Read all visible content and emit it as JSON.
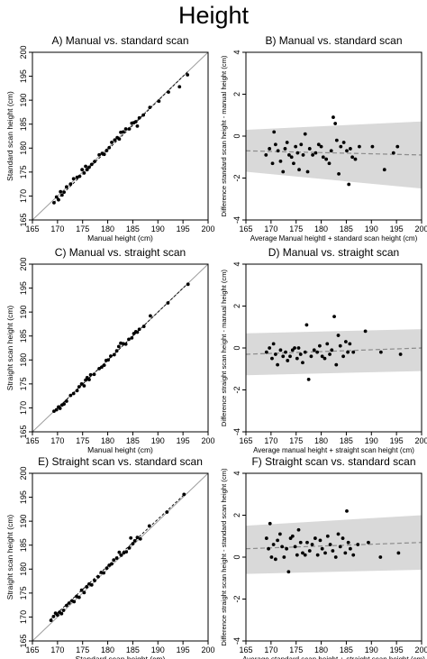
{
  "title": "Height",
  "chart_data": [
    {
      "id": "A",
      "type": "scatter",
      "title": "A) Manual vs. standard scan",
      "xlabel": "Manual height (cm)",
      "ylabel": "Standard scan height (cm)",
      "xlim": [
        165,
        200
      ],
      "ylim": [
        165,
        200
      ],
      "xticks": [
        "165",
        "170",
        "175",
        "180",
        "185",
        "190",
        "195",
        "200"
      ],
      "yticks": [
        "165",
        "170",
        "175",
        "180",
        "185",
        "190",
        "195",
        "200"
      ],
      "identity_line": true,
      "regression_line": {
        "style": "dashed",
        "from": [
          169.2,
          168.6
        ],
        "to": [
          196,
          196
        ]
      },
      "points": [
        [
          169.3,
          168.6
        ],
        [
          169.8,
          169.8
        ],
        [
          170.2,
          169.2
        ],
        [
          170.6,
          170.9
        ],
        [
          170.9,
          170.2
        ],
        [
          171.3,
          170.8
        ],
        [
          171.8,
          171.9
        ],
        [
          172.6,
          172.5
        ],
        [
          173.2,
          173.6
        ],
        [
          173.9,
          173.9
        ],
        [
          174.4,
          174.1
        ],
        [
          174.9,
          175.5
        ],
        [
          175.3,
          174.8
        ],
        [
          175.6,
          176.2
        ],
        [
          175.9,
          175.5
        ],
        [
          176.3,
          176.0
        ],
        [
          176.8,
          176.6
        ],
        [
          177.4,
          177.2
        ],
        [
          178.3,
          178.6
        ],
        [
          178.9,
          178.9
        ],
        [
          179.3,
          178.7
        ],
        [
          179.8,
          179.5
        ],
        [
          180.3,
          180.1
        ],
        [
          180.8,
          181.2
        ],
        [
          181.4,
          181.7
        ],
        [
          181.9,
          182.2
        ],
        [
          182.3,
          181.9
        ],
        [
          182.6,
          183.3
        ],
        [
          183.1,
          183.4
        ],
        [
          183.6,
          184.0
        ],
        [
          184.3,
          184.0
        ],
        [
          184.8,
          185.2
        ],
        [
          185.2,
          185.3
        ],
        [
          185.6,
          185.5
        ],
        [
          185.9,
          184.6
        ],
        [
          186.3,
          186.3
        ],
        [
          187.1,
          186.9
        ],
        [
          188.4,
          188.5
        ],
        [
          190.2,
          189.8
        ],
        [
          192.1,
          191.7
        ],
        [
          194.3,
          192.8
        ],
        [
          195.9,
          195.3
        ]
      ]
    },
    {
      "id": "B",
      "type": "scatter",
      "title": "B) Manual vs. standard scan",
      "xlabel": "Average Manual heightl + standard scan height (cm)",
      "ylabel": "Difference standard scan height - manual height (cm)",
      "xlim": [
        165,
        200
      ],
      "ylim": [
        -4,
        4
      ],
      "xticks": [
        "165",
        "170",
        "175",
        "180",
        "185",
        "190",
        "195",
        "200"
      ],
      "yticks": [
        "-4",
        "-2",
        "0",
        "2",
        "4"
      ],
      "mean_line": {
        "style": "dashed",
        "from": [
          165,
          -0.7
        ],
        "to": [
          200,
          -0.9
        ]
      },
      "limits_band": {
        "upper": [
          [
            165,
            0.3
          ],
          [
            200,
            0.7
          ]
        ],
        "lower": [
          [
            165,
            -1.7
          ],
          [
            200,
            -2.5
          ]
        ]
      },
      "points": [
        [
          169.0,
          -0.9
        ],
        [
          169.7,
          -0.6
        ],
        [
          170.3,
          -1.3
        ],
        [
          170.6,
          0.2
        ],
        [
          170.9,
          -0.4
        ],
        [
          171.4,
          -0.7
        ],
        [
          171.9,
          -1.2
        ],
        [
          172.4,
          -1.7
        ],
        [
          172.8,
          -0.6
        ],
        [
          173.2,
          -0.3
        ],
        [
          173.6,
          -0.9
        ],
        [
          174.1,
          -1.0
        ],
        [
          174.5,
          -1.3
        ],
        [
          174.9,
          -0.5
        ],
        [
          175.3,
          -0.8
        ],
        [
          175.6,
          -1.6
        ],
        [
          176.0,
          -0.4
        ],
        [
          176.4,
          -0.9
        ],
        [
          176.8,
          0.1
        ],
        [
          177.3,
          -1.7
        ],
        [
          177.7,
          -0.6
        ],
        [
          178.3,
          -0.9
        ],
        [
          178.9,
          -0.8
        ],
        [
          179.5,
          -0.4
        ],
        [
          180.0,
          -0.5
        ],
        [
          180.4,
          -1.0
        ],
        [
          181.0,
          -1.1
        ],
        [
          181.6,
          -1.3
        ],
        [
          182.0,
          -0.7
        ],
        [
          182.4,
          0.9
        ],
        [
          182.8,
          0.6
        ],
        [
          183.1,
          -0.2
        ],
        [
          183.5,
          -1.8
        ],
        [
          183.9,
          -0.5
        ],
        [
          184.5,
          -0.3
        ],
        [
          185.1,
          -0.7
        ],
        [
          185.5,
          -2.3
        ],
        [
          185.8,
          -0.6
        ],
        [
          186.2,
          -1.0
        ],
        [
          186.8,
          -1.1
        ],
        [
          187.6,
          -0.5
        ],
        [
          190.2,
          -0.5
        ],
        [
          192.6,
          -1.6
        ],
        [
          194.4,
          -0.8
        ],
        [
          195.2,
          -0.5
        ]
      ]
    },
    {
      "id": "C",
      "type": "scatter",
      "title": "C) Manual vs. straight scan",
      "xlabel": "Manual height (cm)",
      "ylabel": "Straight scan height (cm)",
      "xlim": [
        165,
        200
      ],
      "ylim": [
        165,
        200
      ],
      "xticks": [
        "165",
        "170",
        "175",
        "180",
        "185",
        "190",
        "195",
        "200"
      ],
      "yticks": [
        "165",
        "170",
        "175",
        "180",
        "185",
        "190",
        "195",
        "200"
      ],
      "identity_line": true,
      "regression_line": {
        "style": "dashed",
        "from": [
          169.2,
          169.1
        ],
        "to": [
          196,
          196
        ]
      },
      "points": [
        [
          169.3,
          169.3
        ],
        [
          169.8,
          169.6
        ],
        [
          170.2,
          170.2
        ],
        [
          170.5,
          169.9
        ],
        [
          170.9,
          170.6
        ],
        [
          171.3,
          170.8
        ],
        [
          171.8,
          171.4
        ],
        [
          172.6,
          172.6
        ],
        [
          173.2,
          173.0
        ],
        [
          173.9,
          173.6
        ],
        [
          174.3,
          174.4
        ],
        [
          174.8,
          175.0
        ],
        [
          175.3,
          174.6
        ],
        [
          175.6,
          175.8
        ],
        [
          175.9,
          176.3
        ],
        [
          176.3,
          175.9
        ],
        [
          176.6,
          176.9
        ],
        [
          177.3,
          177.0
        ],
        [
          178.3,
          178.2
        ],
        [
          178.8,
          178.5
        ],
        [
          179.3,
          178.9
        ],
        [
          179.7,
          179.9
        ],
        [
          180.1,
          180.0
        ],
        [
          180.6,
          180.8
        ],
        [
          181.3,
          181.1
        ],
        [
          181.8,
          181.9
        ],
        [
          182.2,
          182.8
        ],
        [
          182.6,
          183.5
        ],
        [
          183.1,
          183.4
        ],
        [
          183.6,
          183.3
        ],
        [
          184.2,
          184.3
        ],
        [
          184.8,
          184.6
        ],
        [
          185.2,
          185.5
        ],
        [
          185.6,
          185.9
        ],
        [
          185.9,
          185.8
        ],
        [
          186.3,
          186.4
        ],
        [
          187.2,
          187.0
        ],
        [
          188.5,
          189.2
        ],
        [
          192.0,
          191.9
        ],
        [
          196.0,
          195.8
        ]
      ]
    },
    {
      "id": "D",
      "type": "scatter",
      "title": "D) Manual vs. straight scan",
      "xlabel": "Average manual height + straight scan height (cm)",
      "ylabel": "Difference straight scan height - manual height (cm)",
      "xlim": [
        165,
        200
      ],
      "ylim": [
        -4,
        4
      ],
      "xticks": [
        "165",
        "170",
        "175",
        "180",
        "185",
        "190",
        "195",
        "200"
      ],
      "yticks": [
        "-4",
        "-2",
        "0",
        "2",
        "4"
      ],
      "mean_line": {
        "style": "dashed",
        "from": [
          165,
          -0.3
        ],
        "to": [
          200,
          0.0
        ]
      },
      "limits_band": {
        "upper": [
          [
            165,
            0.7
          ],
          [
            200,
            0.9
          ]
        ],
        "lower": [
          [
            165,
            -1.3
          ],
          [
            200,
            -1.1
          ]
        ]
      },
      "points": [
        [
          169.1,
          -0.2
        ],
        [
          169.7,
          0.0
        ],
        [
          170.2,
          -0.5
        ],
        [
          170.5,
          0.2
        ],
        [
          170.9,
          -0.3
        ],
        [
          171.3,
          -0.8
        ],
        [
          171.9,
          -0.1
        ],
        [
          172.4,
          -0.4
        ],
        [
          172.9,
          -0.2
        ],
        [
          173.3,
          -0.6
        ],
        [
          173.8,
          -0.4
        ],
        [
          174.3,
          -0.1
        ],
        [
          174.7,
          0.0
        ],
        [
          175.2,
          -0.5
        ],
        [
          175.5,
          0.0
        ],
        [
          175.9,
          -0.3
        ],
        [
          176.3,
          -0.7
        ],
        [
          176.8,
          -0.2
        ],
        [
          177.1,
          1.1
        ],
        [
          177.5,
          -1.5
        ],
        [
          178.0,
          -0.4
        ],
        [
          178.6,
          -0.1
        ],
        [
          179.2,
          -0.2
        ],
        [
          179.7,
          0.1
        ],
        [
          180.2,
          -0.4
        ],
        [
          180.7,
          -0.5
        ],
        [
          181.2,
          0.2
        ],
        [
          181.7,
          -0.3
        ],
        [
          182.1,
          -0.1
        ],
        [
          182.6,
          1.5
        ],
        [
          183.0,
          -0.8
        ],
        [
          183.4,
          0.6
        ],
        [
          183.8,
          0.1
        ],
        [
          184.4,
          -0.4
        ],
        [
          184.9,
          0.3
        ],
        [
          185.3,
          -0.2
        ],
        [
          185.7,
          0.2
        ],
        [
          186.4,
          -0.2
        ],
        [
          188.8,
          0.8
        ],
        [
          191.9,
          -0.2
        ],
        [
          195.8,
          -0.3
        ]
      ]
    },
    {
      "id": "E",
      "type": "scatter",
      "title": "E) Straight scan vs. standard scan",
      "xlabel": "Standard scan height (cm)",
      "ylabel": "Straight scan height (cm)",
      "xlim": [
        165,
        200
      ],
      "ylim": [
        165,
        200
      ],
      "xticks": [
        "165",
        "170",
        "175",
        "180",
        "185",
        "190",
        "195",
        "200"
      ],
      "yticks": [
        "165",
        "170",
        "175",
        "180",
        "185",
        "190",
        "195",
        "200"
      ],
      "identity_line": true,
      "regression_line": {
        "style": "dashed",
        "from": [
          168.5,
          169.4
        ],
        "to": [
          195.5,
          195.8
        ]
      },
      "points": [
        [
          168.7,
          169.3
        ],
        [
          169.2,
          170.1
        ],
        [
          169.6,
          170.8
        ],
        [
          170.0,
          170.4
        ],
        [
          170.4,
          171.0
        ],
        [
          170.8,
          170.7
        ],
        [
          171.2,
          171.4
        ],
        [
          171.8,
          172.4
        ],
        [
          172.3,
          172.9
        ],
        [
          172.9,
          173.4
        ],
        [
          173.3,
          173.2
        ],
        [
          173.8,
          174.3
        ],
        [
          174.3,
          174.1
        ],
        [
          174.8,
          175.6
        ],
        [
          175.3,
          175.1
        ],
        [
          175.8,
          176.3
        ],
        [
          176.3,
          176.9
        ],
        [
          176.8,
          176.7
        ],
        [
          177.4,
          177.6
        ],
        [
          178.1,
          178.4
        ],
        [
          178.7,
          179.3
        ],
        [
          179.2,
          179.2
        ],
        [
          179.8,
          180.2
        ],
        [
          180.3,
          180.8
        ],
        [
          180.8,
          181.1
        ],
        [
          181.2,
          181.9
        ],
        [
          181.8,
          182.3
        ],
        [
          182.3,
          183.5
        ],
        [
          182.7,
          182.9
        ],
        [
          183.2,
          183.4
        ],
        [
          183.7,
          183.6
        ],
        [
          184.3,
          184.4
        ],
        [
          184.6,
          186.5
        ],
        [
          185.0,
          185.3
        ],
        [
          185.4,
          185.9
        ],
        [
          185.9,
          186.6
        ],
        [
          186.5,
          186.3
        ],
        [
          188.3,
          189.0
        ],
        [
          191.8,
          191.9
        ],
        [
          195.2,
          195.6
        ]
      ]
    },
    {
      "id": "F",
      "type": "scatter",
      "title": "F) Straight scan vs. standard scan",
      "xlabel": "Average standard scan height + straight scan height (cm)",
      "ylabel": "Difference straight scan height - standard scan height (cm)",
      "xlim": [
        165,
        200
      ],
      "ylim": [
        -4,
        4
      ],
      "xticks": [
        "165",
        "170",
        "175",
        "180",
        "185",
        "190",
        "195",
        "200"
      ],
      "yticks": [
        "-4",
        "-2",
        "0",
        "2",
        "4"
      ],
      "mean_line": {
        "style": "dashed",
        "from": [
          165,
          0.4
        ],
        "to": [
          200,
          0.7
        ]
      },
      "limits_band": {
        "upper": [
          [
            165,
            1.5
          ],
          [
            200,
            2.0
          ]
        ],
        "lower": [
          [
            165,
            -0.8
          ],
          [
            200,
            -0.6
          ]
        ]
      },
      "points": [
        [
          169.1,
          0.9
        ],
        [
          169.5,
          0.4
        ],
        [
          169.8,
          1.6
        ],
        [
          170.1,
          0.0
        ],
        [
          170.5,
          0.6
        ],
        [
          170.9,
          -0.1
        ],
        [
          171.3,
          0.8
        ],
        [
          171.8,
          1.1
        ],
        [
          172.2,
          0.5
        ],
        [
          172.6,
          0.0
        ],
        [
          173.1,
          0.4
        ],
        [
          173.5,
          -0.7
        ],
        [
          173.9,
          0.9
        ],
        [
          174.3,
          1.0
        ],
        [
          174.8,
          0.5
        ],
        [
          175.2,
          0.1
        ],
        [
          175.5,
          1.3
        ],
        [
          175.9,
          0.7
        ],
        [
          176.3,
          0.2
        ],
        [
          176.8,
          0.1
        ],
        [
          177.2,
          0.7
        ],
        [
          177.7,
          0.3
        ],
        [
          178.2,
          0.6
        ],
        [
          178.8,
          0.9
        ],
        [
          179.3,
          0.1
        ],
        [
          179.8,
          0.8
        ],
        [
          180.2,
          0.4
        ],
        [
          180.8,
          0.2
        ],
        [
          181.3,
          1.0
        ],
        [
          181.8,
          0.6
        ],
        [
          182.3,
          0.3
        ],
        [
          182.9,
          0.0
        ],
        [
          183.4,
          1.1
        ],
        [
          183.8,
          0.5
        ],
        [
          184.3,
          0.9
        ],
        [
          184.8,
          0.2
        ],
        [
          185.1,
          2.2
        ],
        [
          185.4,
          0.7
        ],
        [
          185.8,
          0.4
        ],
        [
          186.4,
          0.1
        ],
        [
          187.3,
          0.6
        ],
        [
          189.4,
          0.7
        ],
        [
          191.8,
          0.0
        ],
        [
          195.4,
          0.2
        ]
      ]
    }
  ]
}
